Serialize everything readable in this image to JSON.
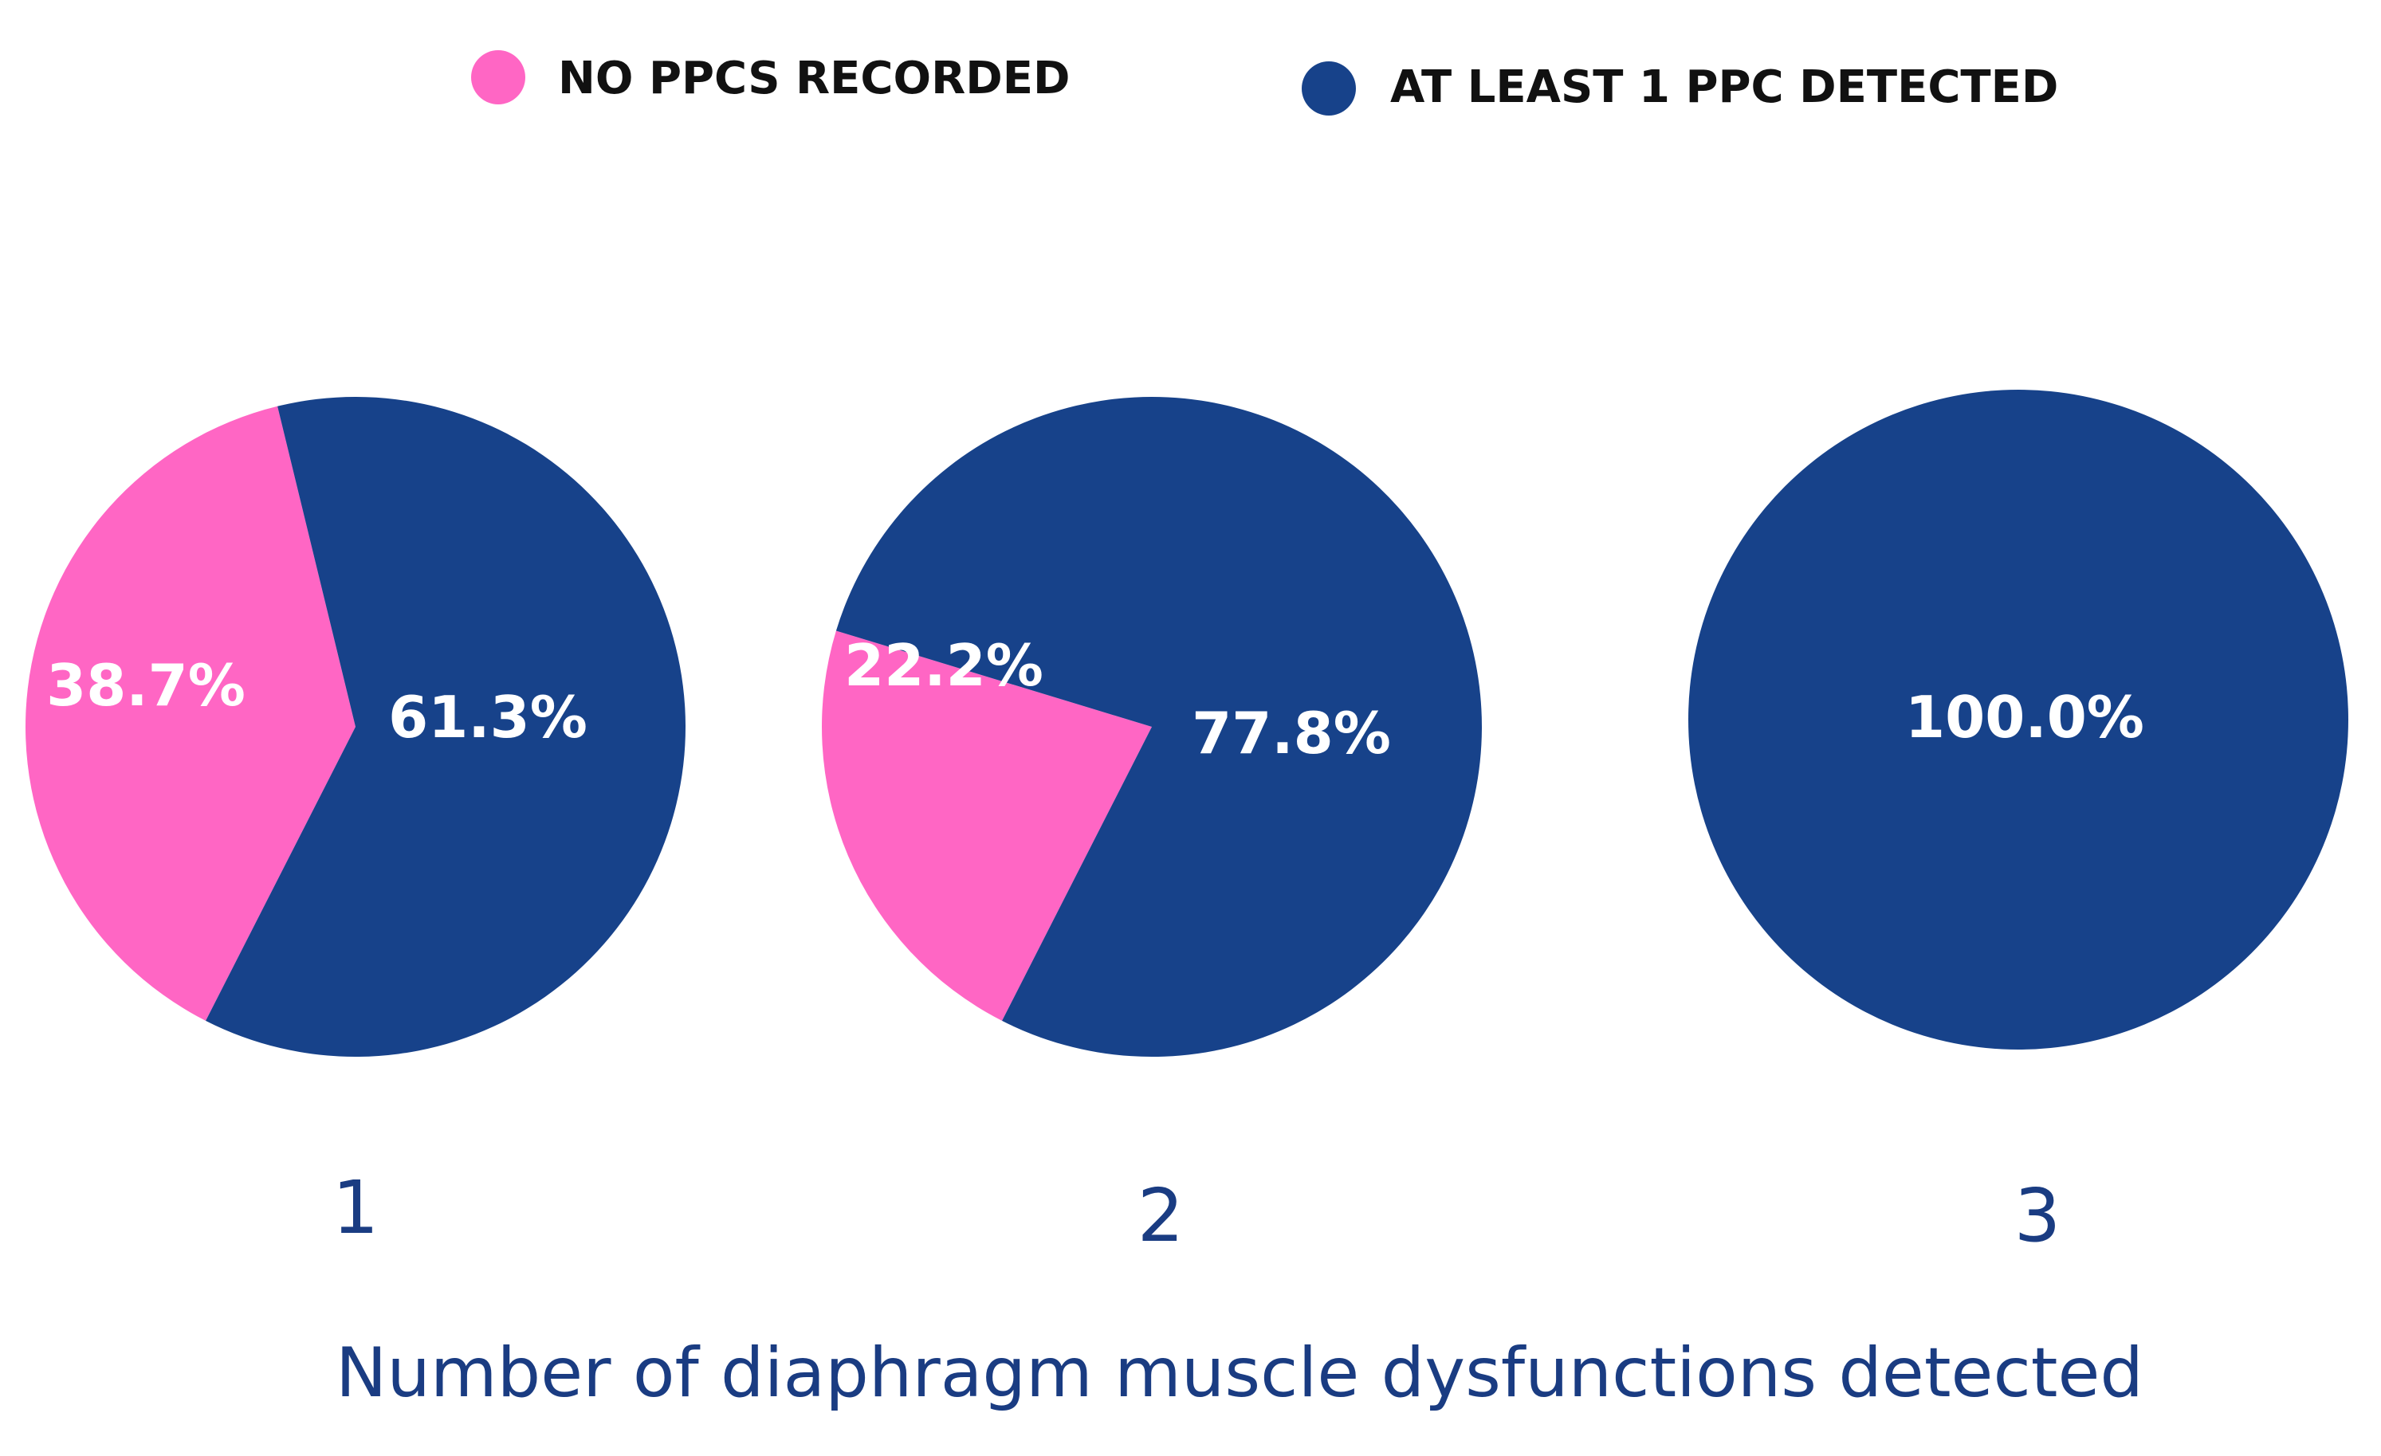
{
  "chart_data": {
    "type": "pie",
    "title": "",
    "xlabel": "Number of  diaphragm muscle dysfunctions detected",
    "legend_position": "top",
    "series": [
      {
        "name": "NO PPCS RECORDED",
        "color": "#ff66c4"
      },
      {
        "name": "AT LEAST 1 PPC DETECTED",
        "color": "#17428a"
      }
    ],
    "charts": [
      {
        "category": "1",
        "slices": [
          {
            "series": "NO PPCS RECORDED",
            "value": 38.7,
            "label": "38.7%"
          },
          {
            "series": "AT LEAST 1 PPC DETECTED",
            "value": 61.3,
            "label": "61.3%"
          }
        ]
      },
      {
        "category": "2",
        "slices": [
          {
            "series": "NO PPCS RECORDED",
            "value": 22.2,
            "label": "22.2%"
          },
          {
            "series": "AT LEAST 1 PPC DETECTED",
            "value": 77.8,
            "label": "77.8%"
          }
        ]
      },
      {
        "category": "3",
        "slices": [
          {
            "series": "AT LEAST 1 PPC DETECTED",
            "value": 100.0,
            "label": "100.0%"
          }
        ]
      }
    ]
  }
}
